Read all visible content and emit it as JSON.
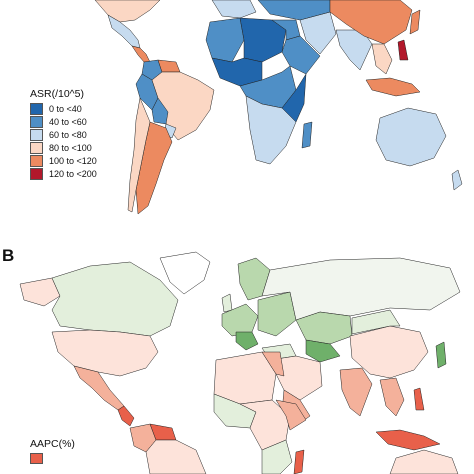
{
  "panel_a": {
    "letter": "",
    "legend": {
      "title": "ASR(/10^5)",
      "items": [
        {
          "label": "0 to <40",
          "color": "#2166ac"
        },
        {
          "label": "40 to <60",
          "color": "#4f8fc6"
        },
        {
          "label": "60 to <80",
          "color": "#c6dbef"
        },
        {
          "label": "80 to <100",
          "color": "#fbd7c4"
        },
        {
          "label": "100 to <120",
          "color": "#ec8a60"
        },
        {
          "label": "120 to <200",
          "color": "#b2182b"
        }
      ]
    }
  },
  "panel_b": {
    "letter": "B",
    "legend": {
      "title": "AAPC(%)",
      "items": [
        {
          "label": "",
          "color": "#e8604a"
        }
      ]
    }
  },
  "colors": {
    "low": "#2166ac",
    "mid_low": "#4f8fc6",
    "light_blue": "#c6dbef",
    "light_peach": "#fbd7c4",
    "orange": "#ec8a60",
    "dark_red": "#b2182b",
    "green_light": "#e3efdc",
    "green_mid": "#b9d8ad",
    "green_dark": "#6fb06a",
    "pink_light": "#fde3da",
    "pink_mid": "#f4b19b",
    "red_aapc": "#e8604a"
  }
}
